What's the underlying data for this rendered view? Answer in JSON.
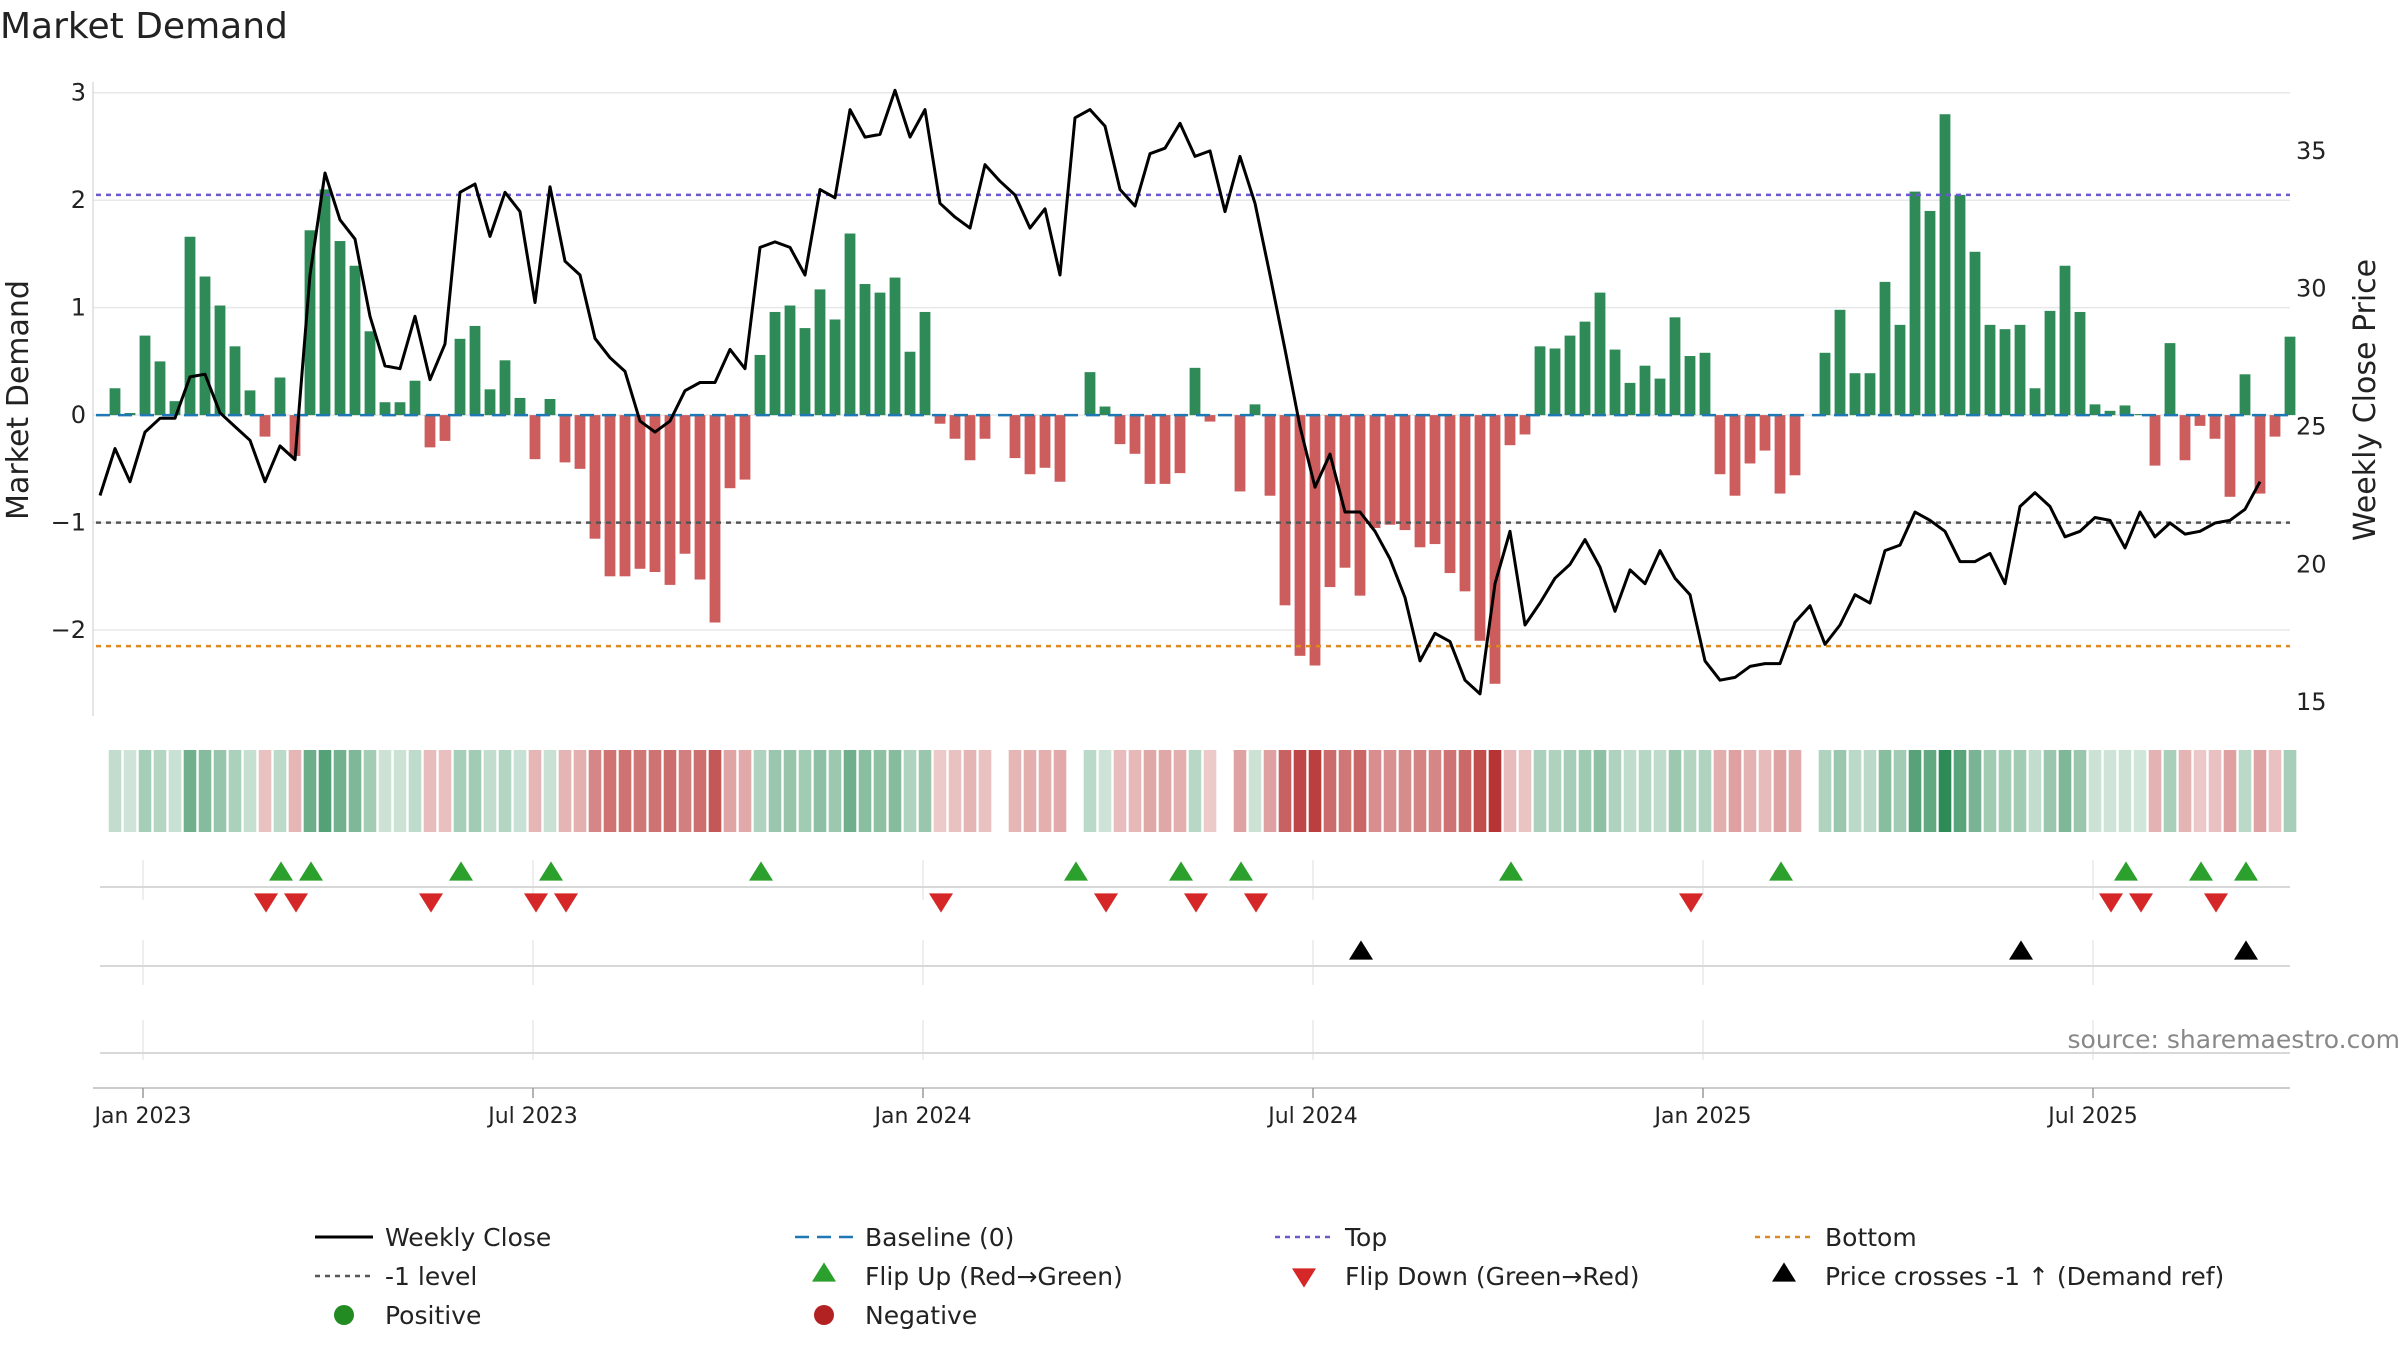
{
  "chart_data": {
    "type": "bar",
    "title": "Market Demand",
    "ylabel": "Market Demand",
    "y2label": "Weekly Close Price",
    "ylim": [
      -2.8,
      3.1
    ],
    "y2lim": [
      14.5,
      37.5
    ],
    "yticks": [
      3,
      2,
      1,
      0,
      -1,
      -2
    ],
    "ytick_labels": [
      "3",
      "2",
      "1",
      "0",
      "−1",
      "−2"
    ],
    "y2ticks": [
      35,
      30,
      25,
      20,
      15
    ],
    "xtick_labels": [
      "Jan 2023",
      "Jul 2023",
      "Jan 2024",
      "Jul 2024",
      "Jan 2025",
      "Jul 2025"
    ],
    "xtick_weeks": [
      1,
      27,
      53,
      79,
      105,
      131
    ],
    "levels": {
      "top": 2.05,
      "bottom": -2.15,
      "minus_one": -1.0,
      "baseline": 0
    },
    "colors": {
      "positive": "#2e8b57",
      "negative": "#cd5c5c",
      "price": "#000000",
      "top": "#6a5acd",
      "bottom": "#dd8a25",
      "minus_one": "#555555",
      "baseline": "#1f77b4",
      "flip_up": "#2ca02c",
      "flip_down": "#d62728"
    },
    "demand": [
      0,
      0.25,
      0.02,
      0.74,
      0.5,
      0.13,
      1.66,
      1.29,
      1.02,
      0.64,
      0.23,
      -0.2,
      0.35,
      -0.38,
      1.72,
      2.1,
      1.62,
      1.39,
      0.78,
      0.12,
      0.12,
      0.32,
      -0.3,
      -0.24,
      0.71,
      0.83,
      0.24,
      0.51,
      0.16,
      -0.41,
      0.15,
      -0.44,
      -0.5,
      -1.15,
      -1.5,
      -1.5,
      -1.43,
      -1.46,
      -1.58,
      -1.29,
      -1.53,
      -1.93,
      -0.68,
      -0.6,
      0.56,
      0.96,
      1.02,
      0.81,
      1.17,
      0.89,
      1.69,
      1.22,
      1.14,
      1.28,
      0.59,
      0.96,
      -0.08,
      -0.22,
      -0.42,
      -0.22,
      0,
      -0.4,
      -0.55,
      -0.49,
      -0.62,
      0,
      0.4,
      0.08,
      -0.27,
      -0.36,
      -0.64,
      -0.64,
      -0.54,
      0.44,
      -0.06,
      0,
      -0.71,
      0.1,
      -0.75,
      -1.77,
      -2.24,
      -2.33,
      -1.6,
      -1.42,
      -1.68,
      -1.05,
      -1.02,
      -1.07,
      -1.23,
      -1.2,
      -1.47,
      -1.64,
      -2.1,
      -2.5,
      -0.28,
      -0.18,
      0.64,
      0.62,
      0.74,
      0.87,
      1.14,
      0.61,
      0.3,
      0.46,
      0.34,
      0.91,
      0.55,
      0.58,
      -0.55,
      -0.75,
      -0.45,
      -0.33,
      -0.73,
      -0.56,
      0,
      0.58,
      0.98,
      0.39,
      0.39,
      1.24,
      0.84,
      2.08,
      1.9,
      2.8,
      2.05,
      1.52,
      0.84,
      0.8,
      0.84,
      0.25,
      0.97,
      1.39,
      0.96,
      0.1,
      0.04,
      0.09,
      0.01,
      -0.47,
      0.67,
      -0.42,
      -0.1,
      -0.22,
      -0.76,
      0.38,
      -0.73,
      -0.2,
      0.73
    ],
    "price": [
      22.5,
      24.2,
      23.0,
      24.8,
      25.3,
      25.3,
      26.8,
      26.9,
      25.5,
      25.0,
      24.5,
      23.0,
      24.3,
      23.8,
      30.5,
      34.2,
      32.5,
      31.8,
      29.0,
      27.2,
      27.1,
      29.0,
      26.7,
      28.0,
      33.5,
      33.8,
      31.9,
      33.5,
      32.8,
      29.5,
      33.7,
      31.0,
      30.5,
      28.2,
      27.5,
      27.0,
      25.2,
      24.8,
      25.2,
      26.3,
      26.6,
      26.6,
      27.8,
      27.1,
      31.5,
      31.7,
      31.5,
      30.5,
      33.6,
      33.3,
      36.5,
      35.5,
      35.6,
      37.2,
      35.5,
      36.5,
      33.1,
      32.6,
      32.2,
      34.5,
      33.9,
      33.4,
      32.2,
      32.9,
      30.5,
      36.2,
      36.5,
      35.9,
      33.6,
      33.0,
      34.9,
      35.1,
      36.0,
      34.8,
      35.0,
      32.8,
      34.8,
      33.1,
      30.5,
      27.8,
      25.0,
      22.8,
      24.0,
      21.9,
      21.9,
      21.2,
      20.2,
      18.8,
      16.5,
      17.5,
      17.2,
      15.8,
      15.3,
      19.3,
      21.2,
      17.8,
      18.6,
      19.5,
      20.0,
      20.9,
      19.9,
      18.3,
      19.8,
      19.3,
      20.5,
      19.5,
      18.9,
      16.5,
      15.8,
      15.9,
      16.3,
      16.4,
      16.4,
      17.9,
      18.5,
      17.1,
      17.8,
      18.9,
      18.6,
      20.5,
      20.7,
      21.9,
      21.6,
      21.2,
      20.1,
      20.1,
      20.4,
      19.3,
      22.1,
      22.6,
      22.1,
      21.0,
      21.2,
      21.7,
      21.6,
      20.6,
      21.9,
      21.0,
      21.5,
      21.1,
      21.2,
      21.5,
      21.6,
      22.0,
      23.0
    ],
    "flip_up_weeks": [
      12,
      14,
      24,
      30,
      44,
      65,
      72,
      76,
      94,
      112,
      135,
      140,
      143
    ],
    "flip_down_weeks": [
      11,
      13,
      22,
      29,
      31,
      56,
      67,
      73,
      77,
      106,
      134,
      136,
      141
    ],
    "cross_weeks": [
      84,
      128,
      143
    ]
  },
  "legend": [
    {
      "key": "close",
      "label": "Weekly Close"
    },
    {
      "key": "baseline",
      "label": "Baseline (0)"
    },
    {
      "key": "top",
      "label": "Top"
    },
    {
      "key": "bottom",
      "label": "Bottom"
    },
    {
      "key": "minus_one",
      "label": "-1 level"
    },
    {
      "key": "flip_up",
      "label": "Flip Up (Red→Green)"
    },
    {
      "key": "flip_down",
      "label": "Flip Down (Green→Red)"
    },
    {
      "key": "cross",
      "label": "Price crosses -1 ↑ (Demand ref)"
    },
    {
      "key": "positive",
      "label": "Positive"
    },
    {
      "key": "negative",
      "label": "Negative"
    }
  ],
  "source": "source: sharemaestro.com"
}
